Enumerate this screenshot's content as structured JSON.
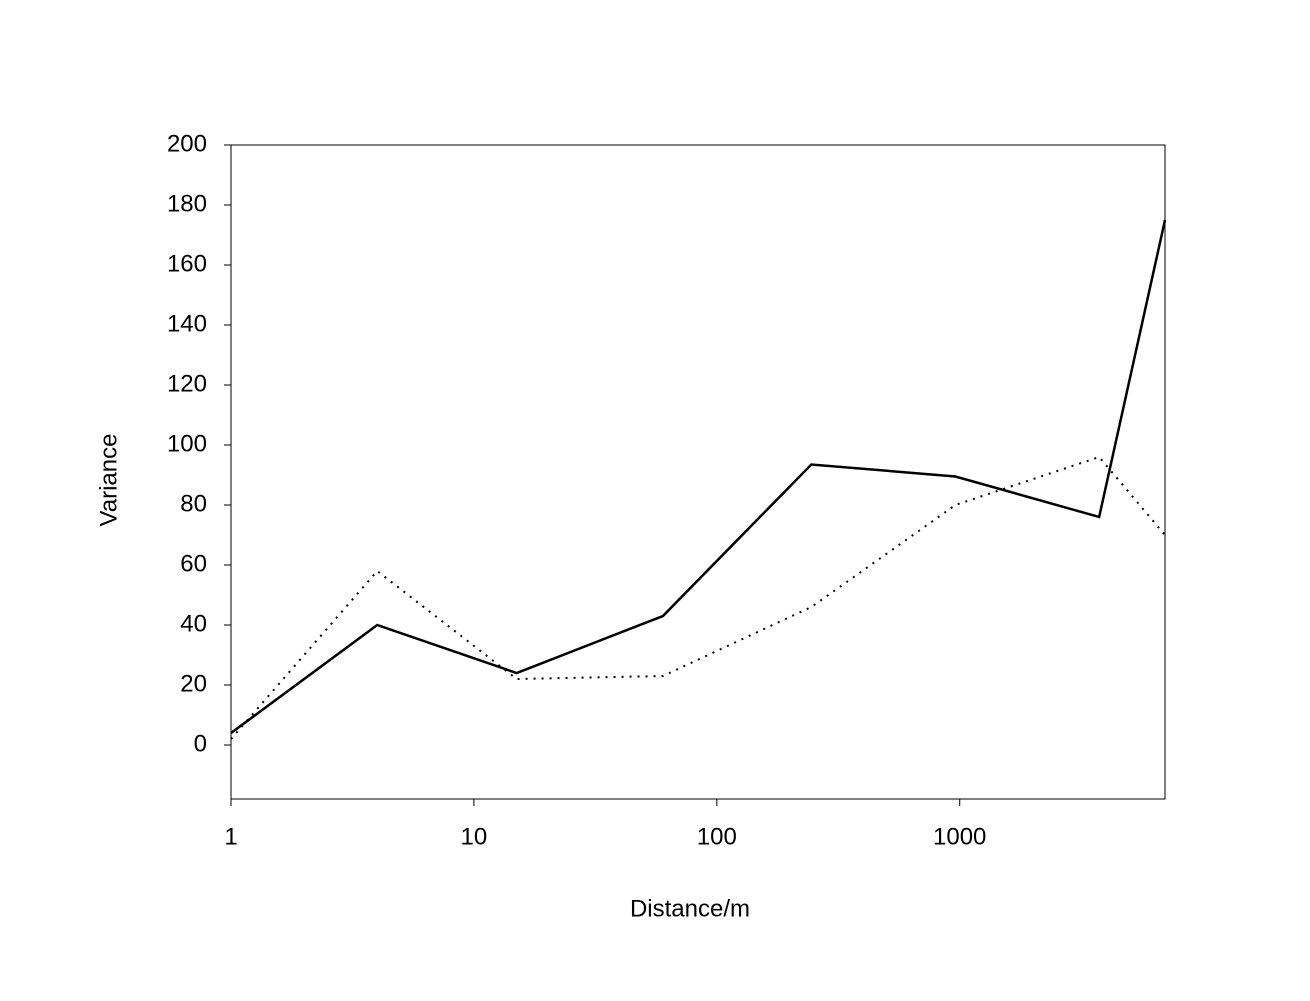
{
  "chart_data": {
    "type": "line",
    "x_label": "Distance/m",
    "y_label": "Variance",
    "x": [
      1,
      4,
      15,
      60,
      245,
      960,
      3750,
      7000
    ],
    "series": [
      {
        "color": "#000000",
        "dash": "solid",
        "values": [
          4,
          40,
          24,
          43,
          93.5,
          89.5,
          76,
          175
        ]
      },
      {
        "color": "#000000",
        "dash": "dotted",
        "values": [
          2,
          58,
          22,
          23,
          46,
          80,
          96,
          70
        ]
      }
    ],
    "xscale": "log",
    "xlim": [
      1,
      7000
    ],
    "xticks": [
      1,
      10,
      100,
      1000
    ],
    "ylim": [
      -18,
      200
    ],
    "yticks": [
      0,
      20,
      40,
      60,
      80,
      100,
      120,
      140,
      160,
      180,
      200
    ],
    "grid": false
  }
}
